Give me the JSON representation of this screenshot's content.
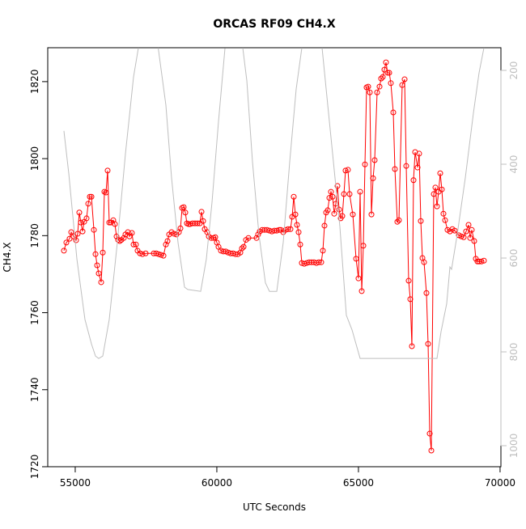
{
  "chart_data": {
    "type": "line",
    "title": "ORCAS RF09 CH4.X",
    "x_label": "UTC Seconds",
    "y_label": "CH4.X",
    "xlim": [
      54030,
      70030
    ],
    "xticks": [
      55000,
      60000,
      65000,
      70000
    ],
    "ylim": [
      1720,
      1828.8
    ],
    "yticks": [
      1720,
      1740,
      1760,
      1780,
      1800,
      1820
    ],
    "y2lim": [
      1044.8,
      151.7
    ],
    "y2ticks": [
      200,
      400,
      600,
      800,
      1000
    ],
    "y2_tick_color": "#bebebe",
    "series": [
      {
        "color": "#ff0000",
        "marker": "circle",
        "x": [
          54601,
          54687,
          54801,
          54859,
          54944,
          55030,
          55087,
          55144,
          55201,
          55259,
          55316,
          55401,
          55459,
          55516,
          55573,
          55659,
          55716,
          55773,
          55830,
          55916,
          55973,
          56030,
          56087,
          56144,
          56201,
          56259,
          56344,
          56401,
          56459,
          56516,
          56573,
          56630,
          56716,
          56773,
          56859,
          56916,
          57001,
          57059,
          57144,
          57201,
          57287,
          57373,
          57487,
          57773,
          57859,
          57944,
          58030,
          58116,
          58201,
          58259,
          58316,
          58401,
          58487,
          58573,
          58659,
          58716,
          58773,
          58830,
          58887,
          58944,
          59001,
          59059,
          59144,
          59230,
          59316,
          59401,
          59459,
          59516,
          59573,
          59659,
          59716,
          59801,
          59887,
          59944,
          60001,
          60059,
          60144,
          60230,
          60316,
          60401,
          60487,
          60573,
          60659,
          60744,
          60830,
          60887,
          60944,
          61030,
          61116,
          61401,
          61459,
          61516,
          61601,
          61687,
          61773,
          61859,
          61944,
          62030,
          62116,
          62201,
          62259,
          62344,
          62430,
          62516,
          62601,
          62659,
          62716,
          62773,
          62830,
          62887,
          62944,
          63001,
          63087,
          63173,
          63259,
          63344,
          63430,
          63516,
          63601,
          63687,
          63744,
          63801,
          63859,
          63916,
          63973,
          64030,
          64087,
          64144,
          64201,
          64259,
          64316,
          64373,
          64430,
          64487,
          64544,
          64630,
          64687,
          64801,
          64916,
          65001,
          65059,
          65116,
          65173,
          65230,
          65287,
          65344,
          65401,
          65459,
          65516,
          65573,
          65659,
          65744,
          65801,
          65859,
          65916,
          65973,
          66030,
          66087,
          66144,
          66230,
          66287,
          66373,
          66430,
          66544,
          66630,
          66687,
          66773,
          66830,
          66887,
          66944,
          67001,
          67087,
          67144,
          67201,
          67259,
          67316,
          67401,
          67459,
          67516,
          67573,
          67659,
          67716,
          67773,
          67830,
          67887,
          67944,
          68001,
          68059,
          68144,
          68230,
          68316,
          68401,
          68544,
          68630,
          68716,
          68801,
          68887,
          68944,
          69001,
          69087,
          69144,
          69201,
          69259,
          69344,
          69430
        ],
        "values": [
          1776.1,
          1778.2,
          1779.2,
          1780.9,
          1779.8,
          1778.8,
          1780.5,
          1786.0,
          1783.4,
          1781.1,
          1783.6,
          1784.5,
          1788.3,
          1790.1,
          1790.1,
          1781.5,
          1775.2,
          1772.3,
          1770.2,
          1767.9,
          1775.6,
          1791.4,
          1791.2,
          1796.9,
          1783.4,
          1783.4,
          1784.0,
          1783.0,
          1779.8,
          1778.9,
          1778.6,
          1778.9,
          1779.4,
          1780.3,
          1780.9,
          1779.8,
          1780.7,
          1777.7,
          1777.7,
          1776.1,
          1775.4,
          1775.2,
          1775.4,
          1775.4,
          1775.4,
          1775.2,
          1775.0,
          1774.8,
          1777.7,
          1778.6,
          1780.3,
          1780.9,
          1780.5,
          1780.3,
          1780.9,
          1781.9,
          1787.2,
          1787.4,
          1786.0,
          1783.2,
          1783.0,
          1783.0,
          1783.2,
          1783.2,
          1783.2,
          1783.2,
          1786.2,
          1783.8,
          1781.7,
          1780.9,
          1779.8,
          1779.4,
          1779.4,
          1779.6,
          1778.2,
          1777.1,
          1776.1,
          1775.9,
          1775.9,
          1775.6,
          1775.4,
          1775.4,
          1775.2,
          1775.2,
          1775.6,
          1776.7,
          1777.1,
          1778.9,
          1779.4,
          1779.4,
          1780.3,
          1781.1,
          1781.5,
          1781.5,
          1781.5,
          1781.3,
          1781.1,
          1781.3,
          1781.3,
          1781.5,
          1781.5,
          1780.9,
          1781.5,
          1781.7,
          1781.7,
          1784.9,
          1790.1,
          1785.5,
          1782.8,
          1780.9,
          1777.7,
          1772.9,
          1772.7,
          1772.9,
          1773.1,
          1773.1,
          1773.1,
          1772.9,
          1773.1,
          1773.1,
          1776.1,
          1782.6,
          1786.0,
          1786.6,
          1789.8,
          1791.4,
          1790.1,
          1785.7,
          1788.3,
          1792.9,
          1786.8,
          1784.5,
          1785.1,
          1790.8,
          1796.9,
          1797.1,
          1790.8,
          1785.5,
          1774.0,
          1768.9,
          1791.4,
          1765.6,
          1777.4,
          1798.5,
          1818.5,
          1818.7,
          1817.2,
          1785.5,
          1794.9,
          1799.6,
          1817.2,
          1818.7,
          1820.8,
          1821.2,
          1823.1,
          1825.0,
          1822.3,
          1822.3,
          1819.6,
          1812.0,
          1797.3,
          1783.6,
          1784.0,
          1819.1,
          1820.6,
          1798.1,
          1768.3,
          1763.5,
          1751.3,
          1794.4,
          1801.7,
          1797.7,
          1801.3,
          1783.8,
          1774.2,
          1773.1,
          1765.1,
          1751.9,
          1728.6,
          1724.2,
          1790.8,
          1792.5,
          1787.6,
          1791.4,
          1796.2,
          1792.0,
          1785.7,
          1784.0,
          1781.5,
          1781.1,
          1781.7,
          1781.3,
          1780.1,
          1779.8,
          1779.6,
          1781.1,
          1782.8,
          1779.4,
          1781.5,
          1778.6,
          1774.0,
          1773.3,
          1773.3,
          1773.3,
          1773.5
        ]
      },
      {
        "color": "#bebebe",
        "axis": "y2",
        "x": [
          54601,
          54773,
          55059,
          55344,
          55573,
          55716,
          55830,
          55973,
          56201,
          56487,
          56773,
          57059,
          57230,
          57580,
          57930,
          58201,
          58401,
          58630,
          58859,
          58973,
          59430,
          59630,
          59830,
          60059,
          60287,
          60600,
          60916,
          61059,
          61259,
          61487,
          61716,
          61859,
          62116,
          62344,
          62573,
          62801,
          63001,
          63360,
          63716,
          63916,
          64116,
          64344,
          64573,
          64773,
          65059,
          67773,
          67916,
          68116,
          68230,
          68287,
          68487,
          68773,
          69059,
          69259,
          69430
        ],
        "values": [
          329,
          420,
          602,
          731,
          783,
          809,
          814,
          809,
          731,
          567,
          378,
          214,
          152,
          null,
          152,
          274,
          429,
          567,
          662,
          667,
          671,
          602,
          481,
          309,
          153,
          null,
          152,
          222,
          395,
          550,
          653,
          671,
          671,
          567,
          395,
          240,
          152,
          null,
          152,
          274,
          395,
          533,
          722,
          753,
          814,
          814,
          757,
          697,
          619,
          624,
          550,
          429,
          291,
          205,
          152
        ]
      }
    ]
  }
}
